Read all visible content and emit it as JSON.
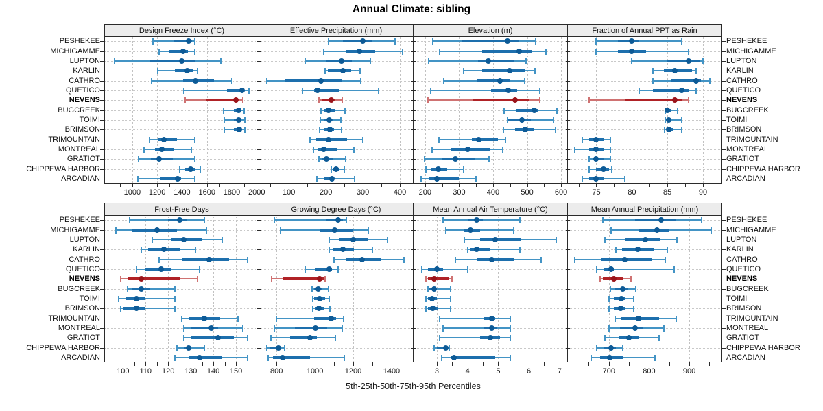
{
  "chart_data": {
    "type": "trellis-dotplot",
    "title": "Annual Climate: sibling",
    "caption_xlabel": "5th-25th-50th-75th-95th Percentiles",
    "percentiles": [
      5,
      25,
      50,
      75,
      95
    ],
    "highlight_station": "NEVENS",
    "grid": "dotted",
    "legend_position": "none",
    "stations": [
      "PESHEKEE",
      "MICHIGAMME",
      "LUPTON",
      "KARLIN",
      "CATHRO",
      "QUETICO",
      "NEVENS",
      "BUGCREEK",
      "TOIMI",
      "BRIMSON",
      "TRIMOUNTAIN",
      "MONTREAL",
      "GRATIOT",
      "CHIPPEWA HARBOR",
      "ARCADIAN"
    ],
    "colors": {
      "blue_whisker": "#4394c5",
      "blue_band": "#1d6fad",
      "blue_dot": "#0d5a96",
      "red_whisker": "#cf7272",
      "red_band": "#b02226",
      "red_dot": "#9a141a",
      "strip_bg": "#ececec",
      "grid": "#c2c2c2",
      "border": "#2b2b2b"
    },
    "panels": [
      {
        "title": "Design Freeze Index (°C)",
        "row": 0,
        "col": 0,
        "domain": [
          780,
          2015
        ],
        "ticks": [
          1000,
          1200,
          1400,
          1600,
          1800,
          2000
        ],
        "minor_ticks": [
          800,
          900,
          1100,
          1300,
          1500,
          1700,
          1900
        ],
        "values": [
          [
            1165,
            1330,
            1455,
            1480,
            1500
          ],
          [
            1215,
            1300,
            1410,
            1445,
            1500
          ],
          [
            855,
            1140,
            1400,
            1500,
            1710
          ],
          [
            1205,
            1340,
            1440,
            1490,
            1525
          ],
          [
            1155,
            1410,
            1510,
            1655,
            1800
          ],
          [
            1415,
            1760,
            1885,
            1900,
            1940
          ],
          [
            1425,
            1590,
            1835,
            1850,
            1890
          ],
          [
            1735,
            1815,
            1855,
            1872,
            1900
          ],
          [
            1737,
            1817,
            1857,
            1874,
            1902
          ],
          [
            1740,
            1818,
            1860,
            1876,
            1903
          ],
          [
            1140,
            1205,
            1255,
            1360,
            1500
          ],
          [
            1095,
            1180,
            1235,
            1335,
            1475
          ],
          [
            1050,
            1150,
            1215,
            1325,
            1500
          ],
          [
            1380,
            1425,
            1470,
            1505,
            1545
          ],
          [
            1045,
            1225,
            1365,
            1390,
            1505
          ]
        ]
      },
      {
        "title": "Effective Precipitation (mm)",
        "row": 0,
        "col": 1,
        "domain": [
          20,
          435
        ],
        "ticks": [
          100,
          200,
          300,
          400
        ],
        "minor_ticks": [
          50,
          150,
          250,
          350
        ],
        "values": [
          [
            208,
            246,
            300,
            326,
            386
          ],
          [
            195,
            255,
            290,
            334,
            408
          ],
          [
            145,
            202,
            243,
            270,
            320
          ],
          [
            198,
            205,
            246,
            268,
            293
          ],
          [
            40,
            91,
            186,
            242,
            294
          ],
          [
            137,
            168,
            178,
            235,
            343
          ],
          [
            182,
            190,
            214,
            223,
            245
          ],
          [
            186,
            195,
            208,
            223,
            251
          ],
          [
            185,
            196,
            209,
            220,
            240
          ],
          [
            183,
            195,
            211,
            222,
            243
          ],
          [
            158,
            174,
            207,
            257,
            300
          ],
          [
            166,
            177,
            195,
            232,
            275
          ],
          [
            182,
            190,
            202,
            220,
            254
          ],
          [
            214,
            220,
            227,
            236,
            249
          ],
          [
            176,
            195,
            217,
            222,
            277
          ]
        ]
      },
      {
        "title": "Elevation (m)",
        "row": 0,
        "col": 2,
        "domain": [
          166,
          618
        ],
        "ticks": [
          200,
          300,
          400,
          500,
          600
        ],
        "minor_ticks": [
          250,
          350,
          450,
          550
        ],
        "values": [
          [
            222,
            308,
            442,
            477,
            526
          ],
          [
            242,
            368,
            476,
            514,
            556
          ],
          [
            211,
            356,
            386,
            460,
            497
          ],
          [
            314,
            368,
            448,
            494,
            523
          ],
          [
            254,
            353,
            421,
            450,
            492
          ],
          [
            216,
            395,
            445,
            470,
            538
          ],
          [
            209,
            339,
            465,
            507,
            537
          ],
          [
            433,
            469,
            521,
            534,
            588
          ],
          [
            442,
            445,
            485,
            511,
            578
          ],
          [
            431,
            465,
            494,
            521,
            583
          ],
          [
            240,
            337,
            358,
            415,
            437
          ],
          [
            220,
            275,
            325,
            393,
            429
          ],
          [
            198,
            248,
            290,
            348,
            388
          ],
          [
            203,
            218,
            238,
            265,
            314
          ],
          [
            188,
            213,
            235,
            300,
            350
          ]
        ]
      },
      {
        "title": "Fraction of Annual PPT as Rain",
        "row": 0,
        "col": 3,
        "domain": [
          71,
          92.6
        ],
        "ticks": [
          75,
          80,
          85,
          90
        ],
        "minor_ticks": [
          72.5,
          77.5,
          82.5,
          87.5
        ],
        "values": [
          [
            75,
            78,
            80,
            81,
            87
          ],
          [
            75,
            78,
            80,
            82,
            88
          ],
          [
            80,
            85,
            88,
            89.5,
            90
          ],
          [
            83,
            84.5,
            86,
            88.5,
            89
          ],
          [
            83,
            85.5,
            89,
            89.7,
            91
          ],
          [
            81,
            83,
            87,
            88,
            89
          ],
          [
            74,
            79,
            86,
            87,
            88
          ],
          [
            84.7,
            84.9,
            85,
            85.5,
            86.4
          ],
          [
            84.7,
            85,
            85.2,
            85.6,
            87
          ],
          [
            84.6,
            85,
            85.2,
            85.8,
            87
          ],
          [
            73,
            74,
            75,
            76,
            77
          ],
          [
            72,
            74,
            75,
            76,
            77
          ],
          [
            74,
            74.5,
            75,
            76,
            77
          ],
          [
            74,
            75,
            76,
            76.8,
            77.2
          ],
          [
            73,
            74,
            75,
            76,
            79
          ]
        ]
      },
      {
        "title": "Frost-Free Days",
        "row": 1,
        "col": 0,
        "domain": [
          92,
          160
        ],
        "ticks": [
          100,
          110,
          120,
          130,
          140,
          150
        ],
        "minor_ticks": [
          95,
          105,
          115,
          125,
          135,
          145,
          155
        ],
        "values": [
          [
            103,
            120,
            125,
            128,
            136
          ],
          [
            97,
            104,
            115,
            124,
            137
          ],
          [
            113,
            121,
            127,
            135,
            144
          ],
          [
            108,
            111,
            118,
            125,
            132
          ],
          [
            116,
            126,
            138,
            147,
            155
          ],
          [
            106,
            110,
            117,
            121,
            134
          ],
          [
            99,
            102,
            108,
            125,
            133
          ],
          [
            102,
            104,
            108,
            112,
            123
          ],
          [
            98,
            101,
            106,
            110,
            123
          ],
          [
            99,
            100,
            106,
            110,
            123
          ],
          [
            126,
            129,
            136,
            143,
            151
          ],
          [
            127,
            130,
            139,
            142,
            153
          ],
          [
            127,
            130,
            142,
            149,
            155
          ],
          [
            124,
            127,
            129,
            130,
            136
          ],
          [
            123,
            129,
            134,
            144,
            155
          ]
        ]
      },
      {
        "title": "Growing Degree Days (°C)",
        "row": 1,
        "col": 1,
        "domain": [
          710,
          1511
        ],
        "ticks": [
          800,
          1000,
          1200,
          1400
        ],
        "minor_ticks": [
          900,
          1100,
          1300,
          1500
        ],
        "values": [
          [
            790,
            1060,
            1120,
            1145,
            1165
          ],
          [
            820,
            1030,
            1105,
            1200,
            1280
          ],
          [
            1075,
            1130,
            1200,
            1275,
            1380
          ],
          [
            1076,
            1095,
            1145,
            1205,
            1300
          ],
          [
            1100,
            1165,
            1245,
            1345,
            1465
          ],
          [
            950,
            1005,
            1075,
            1090,
            1120
          ],
          [
            775,
            835,
            1025,
            1045,
            1055
          ],
          [
            985,
            995,
            1017,
            1038,
            1071
          ],
          [
            990,
            996,
            1024,
            1052,
            1076
          ],
          [
            990,
            1000,
            1022,
            1050,
            1080
          ],
          [
            800,
            995,
            1085,
            1110,
            1150
          ],
          [
            790,
            895,
            1005,
            1065,
            1143
          ],
          [
            770,
            870,
            975,
            1012,
            1107
          ],
          [
            750,
            765,
            810,
            820,
            842
          ],
          [
            755,
            780,
            830,
            975,
            1155
          ]
        ]
      },
      {
        "title": "Mean Annual Air Temperature (°C)",
        "row": 1,
        "col": 2,
        "domain": [
          2.24,
          7.25
        ],
        "ticks": [
          3,
          4,
          5,
          6,
          7
        ],
        "minor_ticks": [
          2.5,
          3.5,
          4.5,
          5.5,
          6.5
        ],
        "values": [
          [
            3.2,
            4.0,
            4.3,
            4.5,
            5.7
          ],
          [
            3.3,
            3.9,
            4.1,
            4.4,
            5.5
          ],
          [
            3.9,
            4.4,
            4.9,
            5.75,
            6.9
          ],
          [
            4.0,
            4.1,
            4.3,
            4.75,
            5.7
          ],
          [
            3.6,
            4.3,
            4.8,
            5.5,
            6.4
          ],
          [
            2.5,
            2.7,
            3.0,
            3.2,
            4.0
          ],
          [
            2.65,
            2.7,
            2.9,
            3.4,
            3.5
          ],
          [
            2.7,
            2.75,
            2.9,
            3.0,
            3.45
          ],
          [
            2.65,
            2.7,
            2.85,
            3.0,
            3.45
          ],
          [
            2.65,
            2.72,
            2.87,
            3.02,
            3.45
          ],
          [
            3.1,
            4.55,
            4.8,
            4.9,
            5.4
          ],
          [
            3.2,
            4.55,
            4.8,
            4.95,
            5.4
          ],
          [
            3.1,
            4.4,
            4.75,
            5.05,
            5.4
          ],
          [
            2.9,
            3.0,
            3.3,
            3.35,
            3.4
          ],
          [
            3.15,
            3.45,
            3.55,
            4.9,
            5.4
          ]
        ]
      },
      {
        "title": "Mean Annual Precipitation (mm)",
        "row": 1,
        "col": 3,
        "domain": [
          598,
          980
        ],
        "ticks": [
          700,
          800,
          900
        ],
        "minor_ticks": [
          650,
          750,
          850,
          950
        ],
        "values": [
          [
            685,
            765,
            830,
            865,
            930
          ],
          [
            705,
            775,
            820,
            850,
            955
          ],
          [
            690,
            740,
            790,
            828,
            870
          ],
          [
            718,
            732,
            772,
            812,
            845
          ],
          [
            615,
            680,
            740,
            808,
            840
          ],
          [
            670,
            688,
            706,
            712,
            862
          ],
          [
            678,
            685,
            713,
            735,
            755
          ],
          [
            703,
            716,
            735,
            747,
            767
          ],
          [
            701,
            713,
            731,
            741,
            762
          ],
          [
            700,
            712,
            730,
            739,
            761
          ],
          [
            716,
            731,
            773,
            825,
            868
          ],
          [
            701,
            727,
            765,
            785,
            836
          ],
          [
            690,
            724,
            750,
            774,
            824
          ],
          [
            670,
            688,
            705,
            718,
            735
          ],
          [
            656,
            678,
            702,
            735,
            815
          ]
        ]
      }
    ]
  }
}
